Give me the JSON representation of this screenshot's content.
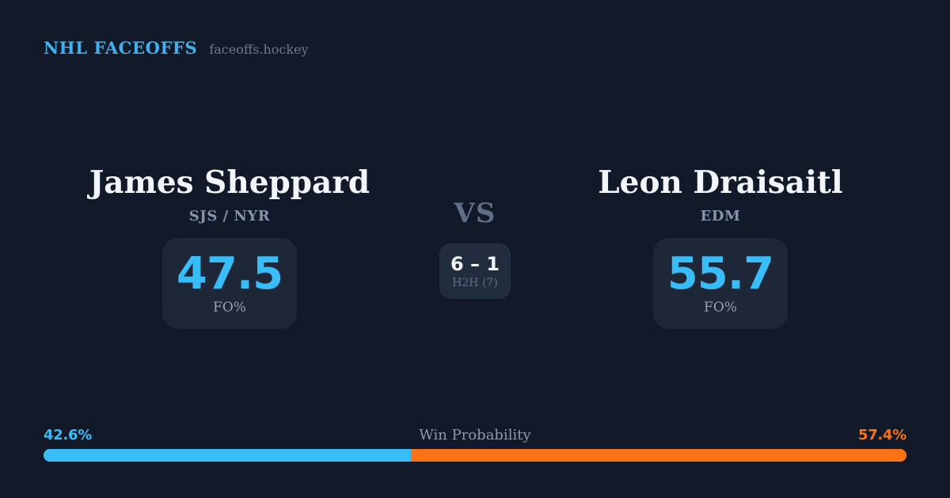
{
  "header": {
    "brand": "NHL FACEOFFS",
    "site": "faceoffs.hockey"
  },
  "matchup": {
    "player_left": {
      "name": "James Sheppard",
      "teams": "SJS / NYR",
      "fo_pct": "47.5",
      "fo_label": "FO%"
    },
    "player_right": {
      "name": "Leon Draisaitl",
      "teams": "EDM",
      "fo_pct": "55.7",
      "fo_label": "FO%"
    },
    "vs_label": "VS",
    "h2h": {
      "score": "6 – 1",
      "label": "H2H (7)"
    }
  },
  "win_probability": {
    "title": "Win Probability",
    "left_pct": "42.6%",
    "right_pct": "57.4%",
    "left_value": 42.6,
    "right_value": 57.4
  },
  "colors": {
    "accent_blue": "#38bdf8",
    "accent_orange": "#f97316",
    "background": "#121a2a",
    "panel": "#1d2737",
    "panel_light": "#212c3d",
    "text_primary": "#f2f5f9",
    "text_muted": "#8494aa",
    "text_faint": "#5f6d85"
  }
}
